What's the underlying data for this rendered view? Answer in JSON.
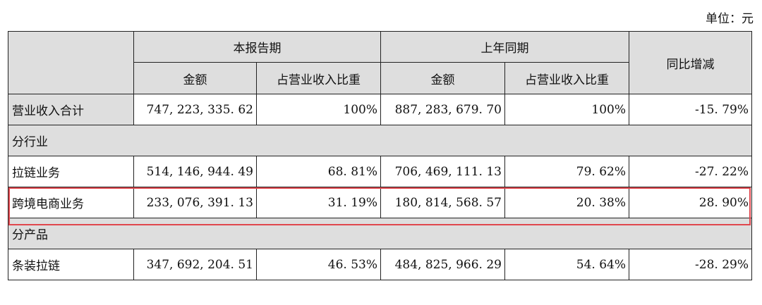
{
  "unit_label": "单位：元",
  "header": {
    "current_period": "本报告期",
    "prior_period": "上年同期",
    "yoy": "同比增减",
    "amount": "金额",
    "ratio": "占营业收入比重"
  },
  "rows": [
    {
      "label": "营业收入合计",
      "cur_amount": "747, 223, 335. 62",
      "cur_ratio": "100%",
      "prev_amount": "887, 283, 679. 70",
      "prev_ratio": "100%",
      "yoy": "-15. 79%"
    },
    {
      "section": "分行业"
    },
    {
      "label": "拉链业务",
      "cur_amount": "514, 146, 944. 49",
      "cur_ratio": "68. 81%",
      "prev_amount": "706, 469, 111. 13",
      "prev_ratio": "79. 62%",
      "yoy": "-27. 22%"
    },
    {
      "label": "跨境电商业务",
      "cur_amount": "233, 076, 391. 13",
      "cur_ratio": "31. 19%",
      "prev_amount": "180, 814, 568. 57",
      "prev_ratio": "20. 38%",
      "yoy": "28. 90%"
    },
    {
      "section": "分产品"
    },
    {
      "label": "条装拉链",
      "cur_amount": "347, 692, 204. 51",
      "cur_ratio": "46. 53%",
      "prev_amount": "484, 825, 966. 29",
      "prev_ratio": "54. 64%",
      "yoy": "-28. 29%"
    }
  ],
  "colors": {
    "header_fill": "#dedede",
    "highlight_border": "#e0474d"
  }
}
